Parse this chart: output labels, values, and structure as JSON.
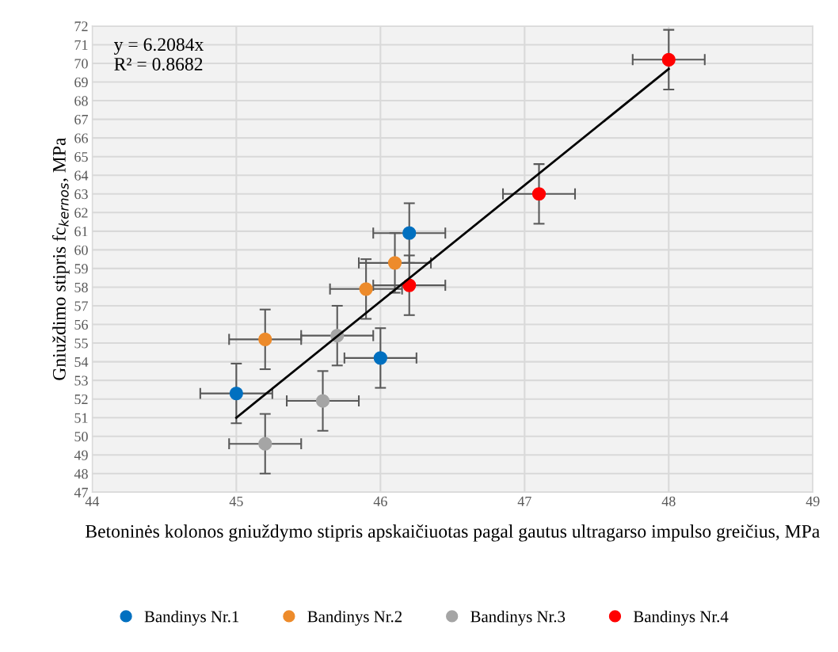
{
  "chart_data": {
    "type": "scatter",
    "xlabel": "Betoninės kolonos gniuždymo stipris apskaičiuotas pagal gautus ultragarso impulso greičius, MPa",
    "ylabel": "Gniuždimo stipris fc$_{kernos}$, MPa",
    "annotations": [
      "y = 6.2084x\nR² = 0.8682"
    ],
    "series": [
      {
        "name": "Bandinys Nr.1",
        "color": "#0070c0",
        "x": [
          45.0,
          46.0,
          46.2
        ],
        "values": [
          52.3,
          54.2,
          60.9
        ],
        "errors": [
          1.6,
          1.6,
          1.6
        ],
        "xerrors": [
          0.25,
          0.25,
          0.25
        ]
      },
      {
        "name": "Bandinys Nr.2",
        "color": "#ed8b2b",
        "x": [
          45.2,
          45.9,
          46.1
        ],
        "values": [
          55.2,
          57.9,
          59.3
        ],
        "errors": [
          1.6,
          1.6,
          1.6
        ],
        "xerrors": [
          0.25,
          0.25,
          0.25
        ]
      },
      {
        "name": "Bandinys Nr.3",
        "color": "#a5a5a5",
        "x": [
          45.2,
          45.6,
          45.7
        ],
        "values": [
          49.6,
          51.9,
          55.4
        ],
        "errors": [
          1.6,
          1.6,
          1.6
        ],
        "xerrors": [
          0.25,
          0.25,
          0.25
        ]
      },
      {
        "name": "Bandinys Nr.4",
        "color": "#ff0000",
        "x": [
          46.2,
          47.1,
          48.0
        ],
        "values": [
          58.1,
          63.0,
          70.2
        ],
        "errors": [
          1.6,
          1.6,
          1.6
        ],
        "xerrors": [
          0.25,
          0.25,
          0.25
        ]
      },
      {
        "type": "line",
        "marker": "none",
        "color": "#000000",
        "x": [
          45.0,
          48.0
        ],
        "values": [
          51.0,
          69.7
        ]
      }
    ],
    "xlim": [
      44,
      49
    ],
    "xticks": [
      44,
      45,
      46,
      47,
      48,
      49
    ],
    "ylim": [
      47,
      72
    ],
    "yticks": [
      47,
      48,
      49,
      50,
      51,
      52,
      53,
      54,
      55,
      56,
      57,
      58,
      59,
      60,
      61,
      62,
      63,
      64,
      65,
      66,
      67,
      68,
      69,
      70,
      71,
      72
    ],
    "grid": true,
    "legend": "bottom",
    "marker": "circle"
  }
}
